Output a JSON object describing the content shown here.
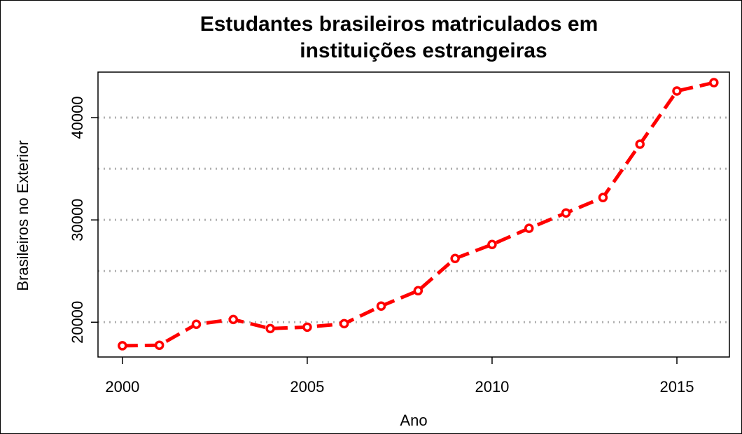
{
  "chart_data": {
    "type": "line",
    "title": [
      "Estudantes brasileiros matriculados em",
      "instituições estrangeiras"
    ],
    "xlabel": "Ano",
    "ylabel": "Brasileiros no Exterior",
    "x": [
      2000,
      2001,
      2002,
      2003,
      2004,
      2005,
      2006,
      2007,
      2008,
      2009,
      2010,
      2011,
      2012,
      2013,
      2014,
      2015,
      2016
    ],
    "series": [
      {
        "name": "Brasileiros no Exterior",
        "color": "#ff0000",
        "values": [
          17700,
          17750,
          19800,
          20270,
          19380,
          19520,
          19860,
          21580,
          23080,
          26230,
          27600,
          29180,
          30680,
          32190,
          37400,
          42600,
          43420
        ]
      }
    ],
    "xlim": [
      1999.34,
      2016.42
    ],
    "ylim": [
      16600,
      44450
    ],
    "xticks": [
      2000,
      2005,
      2010,
      2015
    ],
    "yticks": [
      20000,
      30000,
      40000
    ],
    "ygrid": [
      20000,
      25000,
      30000,
      35000,
      40000
    ],
    "grid": true
  }
}
